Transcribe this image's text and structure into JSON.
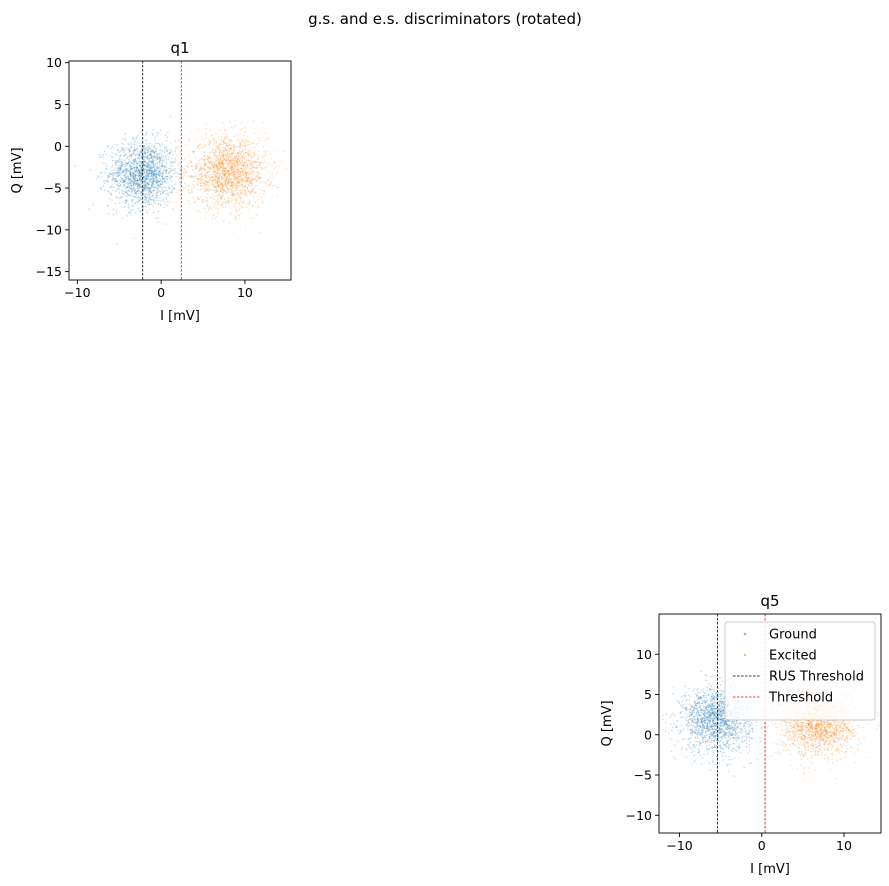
{
  "figure": {
    "suptitle": "g.s. and e.s. discriminators (rotated)"
  },
  "colors": {
    "ground": "#1f77b4",
    "excited": "#ff7f0e",
    "rus_threshold": "#000000",
    "threshold": "#ff0000"
  },
  "chart_data": [
    {
      "type": "scatter",
      "title": "q1",
      "xlabel": "I [mV]",
      "ylabel": "Q [mV]",
      "xlim": [
        -11,
        15.5
      ],
      "ylim": [
        -16,
        10.2
      ],
      "xticks": [
        -10,
        0,
        10
      ],
      "yticks": [
        -15,
        -10,
        -5,
        0,
        5,
        10
      ],
      "grid": false,
      "legend": null,
      "clusters": [
        {
          "series": "Ground",
          "center": [
            -2.2,
            -3.3
          ],
          "std": [
            2.0,
            2.0
          ],
          "count": 1600
        },
        {
          "series": "Excited",
          "center": [
            8.0,
            -3.1
          ],
          "std": [
            2.3,
            2.1
          ],
          "count": 1600
        }
      ],
      "vlines": [
        {
          "series": "RUS Threshold",
          "x": -2.2,
          "style": "dashed"
        },
        {
          "series": "Threshold",
          "x": 2.4,
          "style": "dashed"
        }
      ]
    },
    {
      "type": "scatter",
      "title": "q5",
      "xlabel": "I [mV]",
      "ylabel": "Q [mV]",
      "xlim": [
        -12.5,
        14.5
      ],
      "ylim": [
        -12.2,
        15.0
      ],
      "xticks": [
        -10,
        0,
        10
      ],
      "yticks": [
        -10,
        -5,
        0,
        5,
        10
      ],
      "grid": false,
      "legend": {
        "placement": "upper right",
        "entries": [
          "Ground",
          "Excited",
          "RUS Threshold",
          "Threshold"
        ]
      },
      "clusters": [
        {
          "series": "Ground",
          "center": [
            -5.5,
            1.9
          ],
          "std": [
            2.1,
            2.0
          ],
          "count": 1600
        },
        {
          "series": "Excited",
          "center": [
            6.8,
            1.4
          ],
          "std": [
            2.3,
            2.0
          ],
          "count": 1600
        }
      ],
      "vlines": [
        {
          "series": "RUS Threshold",
          "x": -5.4,
          "style": "dashed"
        },
        {
          "series": "Threshold",
          "x": 0.4,
          "style": "dashed"
        }
      ]
    }
  ]
}
